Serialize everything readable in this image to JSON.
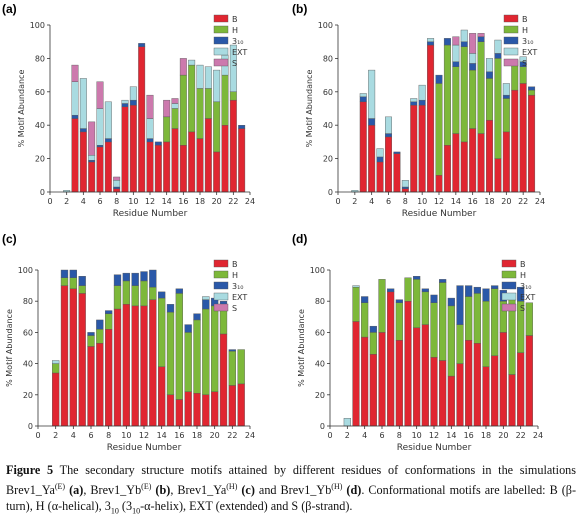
{
  "legend_labels": [
    "B",
    "H",
    "3₁₀",
    "EXT",
    "S"
  ],
  "colors": {
    "B": "#e02631",
    "H": "#7db83a",
    "3_10": "#2a58a8",
    "EXT": "#a9dbe1",
    "S": "#cc79ad",
    "axis": "#333333",
    "bar_stroke": "#555555"
  },
  "caption": {
    "fig_label": "Figure 5",
    "text_1": "The secondary structure motifs attained by different residues of conformations in the simulations Brev1_Ya",
    "sup_1": "(E)",
    "p1": "(a)",
    "sep1": ", Brev1_Yb",
    "sup_2": "(E)",
    "p2": "(b)",
    "sep2": ",  Brev1_Ya",
    "sup_3": "(H)",
    "p3": "(c)",
    "sep3": " and Brev1_Yb",
    "sup_4": "(H)",
    "p4": "(d)",
    "text_2": ".  Conformational motifs  are labelled: B (β-turn), H (α-helical), 3",
    "sub_1": "10",
    "text_3": " (3",
    "sub_2": "10",
    "text_4": "-α-helix), EXT (extended) and S (β-strand)."
  },
  "chart_data": [
    {
      "panel": "(a)",
      "type": "bar",
      "stacked": true,
      "xlabel": "Residue Number",
      "ylabel": "% Motif Abundance",
      "xlim": [
        0,
        24
      ],
      "ylim": [
        0,
        100
      ],
      "xticks": [
        0,
        2,
        4,
        6,
        8,
        10,
        12,
        14,
        16,
        18,
        20,
        22,
        24
      ],
      "yticks": [
        0,
        20,
        40,
        60,
        80,
        100
      ],
      "legend_position": "top-right",
      "x": [
        2,
        3,
        4,
        5,
        6,
        7,
        8,
        9,
        10,
        11,
        12,
        13,
        14,
        15,
        16,
        17,
        18,
        19,
        20,
        21,
        22,
        23
      ],
      "series": [
        {
          "name": "B",
          "values": [
            0,
            44,
            36,
            18,
            27,
            30,
            2,
            51,
            52,
            87,
            30,
            28,
            30,
            38,
            28,
            36,
            32,
            44,
            24,
            40,
            55,
            38
          ]
        },
        {
          "name": "H",
          "values": [
            0,
            0,
            0,
            0,
            0,
            0,
            0,
            0,
            0,
            0,
            0,
            0,
            15,
            12,
            42,
            40,
            30,
            18,
            30,
            30,
            5,
            0
          ]
        },
        {
          "name": "3₁₀",
          "values": [
            0,
            2,
            2,
            1,
            1,
            2,
            1,
            2,
            3,
            2,
            2,
            2,
            0,
            0,
            0,
            0,
            0,
            0,
            0,
            0,
            0,
            2
          ]
        },
        {
          "name": "EXT",
          "values": [
            1,
            20,
            30,
            3,
            22,
            22,
            4,
            2,
            8,
            0,
            12,
            0,
            0,
            3,
            0,
            3,
            14,
            13,
            19,
            12,
            28,
            0
          ]
        },
        {
          "name": "S",
          "values": [
            0,
            10,
            0,
            20,
            16,
            0,
            2,
            0,
            0,
            0,
            14,
            0,
            10,
            3,
            10,
            0,
            0,
            0,
            0,
            0,
            0,
            0
          ]
        }
      ]
    },
    {
      "panel": "(b)",
      "type": "bar",
      "stacked": true,
      "xlabel": "Residue Number",
      "ylabel": "% Motif Abundance",
      "xlim": [
        0,
        24
      ],
      "ylim": [
        0,
        100
      ],
      "xticks": [
        0,
        2,
        4,
        6,
        8,
        10,
        12,
        14,
        16,
        18,
        20,
        22,
        24
      ],
      "yticks": [
        0,
        20,
        40,
        60,
        80,
        100
      ],
      "legend_position": "top-right",
      "x": [
        2,
        3,
        4,
        5,
        6,
        7,
        8,
        9,
        10,
        11,
        12,
        13,
        14,
        15,
        16,
        17,
        18,
        19,
        20,
        21,
        22,
        23
      ],
      "series": [
        {
          "name": "B",
          "values": [
            0,
            54,
            40,
            18,
            33,
            23,
            2,
            52,
            52,
            88,
            10,
            28,
            35,
            30,
            38,
            35,
            43,
            20,
            36,
            61,
            65,
            58
          ]
        },
        {
          "name": "H",
          "values": [
            0,
            0,
            0,
            0,
            0,
            0,
            0,
            0,
            0,
            0,
            55,
            60,
            40,
            57,
            35,
            55,
            25,
            60,
            20,
            15,
            10,
            3
          ]
        },
        {
          "name": "3₁₀",
          "values": [
            0,
            3,
            4,
            3,
            2,
            1,
            1,
            2,
            3,
            2,
            5,
            4,
            3,
            3,
            4,
            3,
            4,
            3,
            2,
            3,
            3,
            2
          ]
        },
        {
          "name": "EXT",
          "values": [
            1,
            2,
            29,
            5,
            10,
            0,
            4,
            2,
            9,
            2,
            0,
            0,
            10,
            7,
            6,
            0,
            8,
            8,
            7,
            0,
            3,
            0
          ]
        },
        {
          "name": "S",
          "values": [
            0,
            0,
            0,
            0,
            0,
            0,
            0,
            0,
            0,
            0,
            0,
            0,
            5,
            0,
            12,
            2,
            0,
            0,
            0,
            0,
            0,
            0
          ]
        }
      ]
    },
    {
      "panel": "(c)",
      "type": "bar",
      "stacked": true,
      "xlabel": "Residue Number",
      "ylabel": "% Motif Abundance",
      "xlim": [
        0,
        24
      ],
      "ylim": [
        0,
        100
      ],
      "xticks": [
        0,
        2,
        4,
        6,
        8,
        10,
        12,
        14,
        16,
        18,
        20,
        22,
        24
      ],
      "yticks": [
        0,
        20,
        40,
        60,
        80,
        100
      ],
      "legend_position": "top-right",
      "x": [
        2,
        3,
        4,
        5,
        6,
        7,
        8,
        9,
        10,
        11,
        12,
        13,
        14,
        15,
        16,
        17,
        18,
        19,
        20,
        21,
        22,
        23
      ],
      "series": [
        {
          "name": "B",
          "values": [
            34,
            90,
            88,
            85,
            51,
            53,
            62,
            75,
            78,
            77,
            77,
            81,
            38,
            20,
            17,
            22,
            21,
            20,
            22,
            59,
            26,
            27
          ]
        },
        {
          "name": "H",
          "values": [
            6,
            5,
            7,
            5,
            7,
            9,
            10,
            15,
            15,
            13,
            16,
            8,
            44,
            53,
            68,
            38,
            47,
            55,
            55,
            19,
            22,
            22
          ]
        },
        {
          "name": "3₁₀",
          "values": [
            0,
            5,
            5,
            6,
            2,
            6,
            2,
            7,
            5,
            8,
            6,
            11,
            4,
            5,
            3,
            5,
            4,
            6,
            5,
            2,
            1,
            0
          ]
        },
        {
          "name": "EXT",
          "values": [
            2,
            0,
            0,
            0,
            0,
            0,
            0,
            0,
            0,
            0,
            0,
            0,
            0,
            0,
            0,
            0,
            0,
            2,
            0,
            0,
            0,
            0
          ]
        },
        {
          "name": "S",
          "values": [
            0,
            0,
            0,
            0,
            0,
            0,
            0,
            0,
            0,
            0,
            0,
            0,
            0,
            0,
            0,
            0,
            0,
            0,
            0,
            0,
            0,
            0
          ]
        }
      ]
    },
    {
      "panel": "(d)",
      "type": "bar",
      "stacked": true,
      "xlabel": "Residue Number",
      "ylabel": "% Motif Abundance",
      "xlim": [
        0,
        24
      ],
      "ylim": [
        0,
        100
      ],
      "xticks": [
        0,
        2,
        4,
        6,
        8,
        10,
        12,
        14,
        16,
        18,
        20,
        22,
        24
      ],
      "yticks": [
        0,
        20,
        40,
        60,
        80,
        100
      ],
      "legend_position": "top-right",
      "x": [
        2,
        3,
        4,
        5,
        6,
        7,
        8,
        9,
        10,
        11,
        12,
        13,
        14,
        15,
        16,
        17,
        18,
        19,
        20,
        21,
        22,
        23
      ],
      "series": [
        {
          "name": "B",
          "values": [
            0,
            67,
            57,
            46,
            60,
            86,
            55,
            80,
            63,
            65,
            44,
            42,
            32,
            40,
            55,
            53,
            38,
            45,
            60,
            33,
            47,
            58
          ]
        },
        {
          "name": "H",
          "values": [
            0,
            22,
            22,
            14,
            34,
            0,
            24,
            15,
            31,
            21,
            35,
            50,
            45,
            25,
            28,
            32,
            42,
            43,
            20,
            51,
            33,
            21
          ]
        },
        {
          "name": "3₁₀",
          "values": [
            0,
            0,
            4,
            4,
            0,
            2,
            2,
            0,
            2,
            2,
            5,
            2,
            5,
            25,
            7,
            4,
            8,
            2,
            7,
            0,
            9,
            0
          ]
        },
        {
          "name": "EXT",
          "values": [
            5,
            1,
            0,
            0,
            0,
            0,
            0,
            0,
            0,
            0,
            0,
            0,
            0,
            0,
            0,
            0,
            0,
            0,
            0,
            0,
            0,
            0
          ]
        },
        {
          "name": "S",
          "values": [
            0,
            0,
            0,
            0,
            0,
            0,
            0,
            0,
            0,
            0,
            0,
            0,
            0,
            0,
            0,
            0,
            0,
            0,
            0,
            0,
            0,
            0
          ]
        }
      ]
    }
  ]
}
